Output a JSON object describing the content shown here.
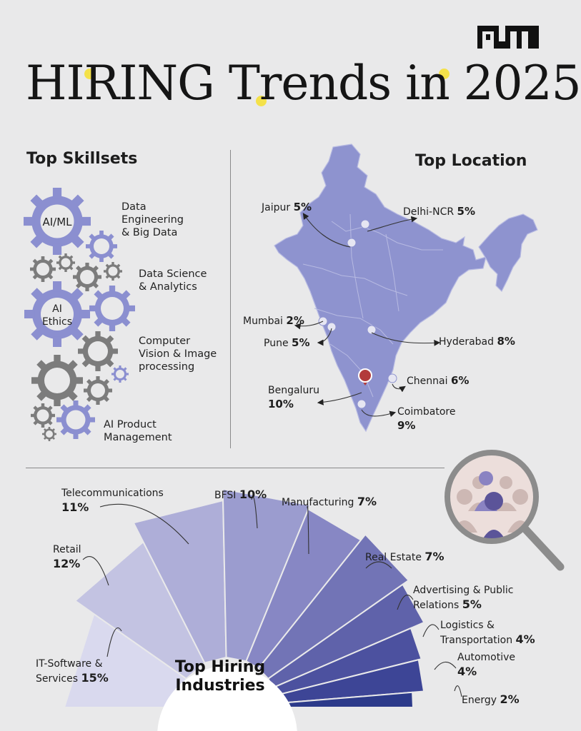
{
  "brand": "AIM",
  "title": "HIRING Trends in 2025",
  "skills": {
    "heading": "Top Skillsets",
    "gear_labels": [
      "AI/ML",
      "AI\nEthics"
    ],
    "items": [
      "Data\nEngineering\n& Big Data",
      "Data Science\n& Analytics",
      "Computer\nVision & Image\nprocessing",
      "AI Product\nManagement"
    ]
  },
  "locations": {
    "heading": "Top Location",
    "items": [
      {
        "city": "Jaipur",
        "value": "5%"
      },
      {
        "city": "Delhi-NCR",
        "value": "5%"
      },
      {
        "city": "Mumbai",
        "value": "2%"
      },
      {
        "city": "Pune",
        "value": "5%"
      },
      {
        "city": "Hyderabad",
        "value": "8%"
      },
      {
        "city": "Chennai",
        "value": "6%"
      },
      {
        "city": "Bengaluru",
        "value": "10%"
      },
      {
        "city": "Coimbatore",
        "value": "9%"
      }
    ]
  },
  "chart_data": {
    "type": "pie",
    "center_label": "Top Hiring\nIndustries",
    "categories": [
      "IT-Software & Services",
      "Retail",
      "Telecommunications",
      "BFSI",
      "Manufacturing",
      "Real Estate",
      "Advertising & Public Relations",
      "Logistics & Transportation",
      "Automotive",
      "Energy"
    ],
    "values": [
      15,
      12,
      11,
      10,
      7,
      7,
      5,
      4,
      4,
      2
    ],
    "value_labels": [
      "15%",
      "12%",
      "11%",
      "10%",
      "7%",
      "7%",
      "5%",
      "4%",
      "4%",
      "2%"
    ],
    "label_texts": [
      "IT-Software &\nServices",
      "Retail\n",
      "Telecommunications\n",
      "BFSI",
      "Manufacturing",
      "Real Estate",
      "Advertising & Public\nRelations",
      "Logistics &\nTransportation",
      "Automotive\n",
      "Energy"
    ],
    "colors": [
      "#d9d9ee",
      "#c3c3e2",
      "#aeaed8",
      "#9b9ccf",
      "#8787c4",
      "#7274b6",
      "#5f62aa",
      "#4c519f",
      "#3d4596",
      "#2c3a8a"
    ]
  }
}
